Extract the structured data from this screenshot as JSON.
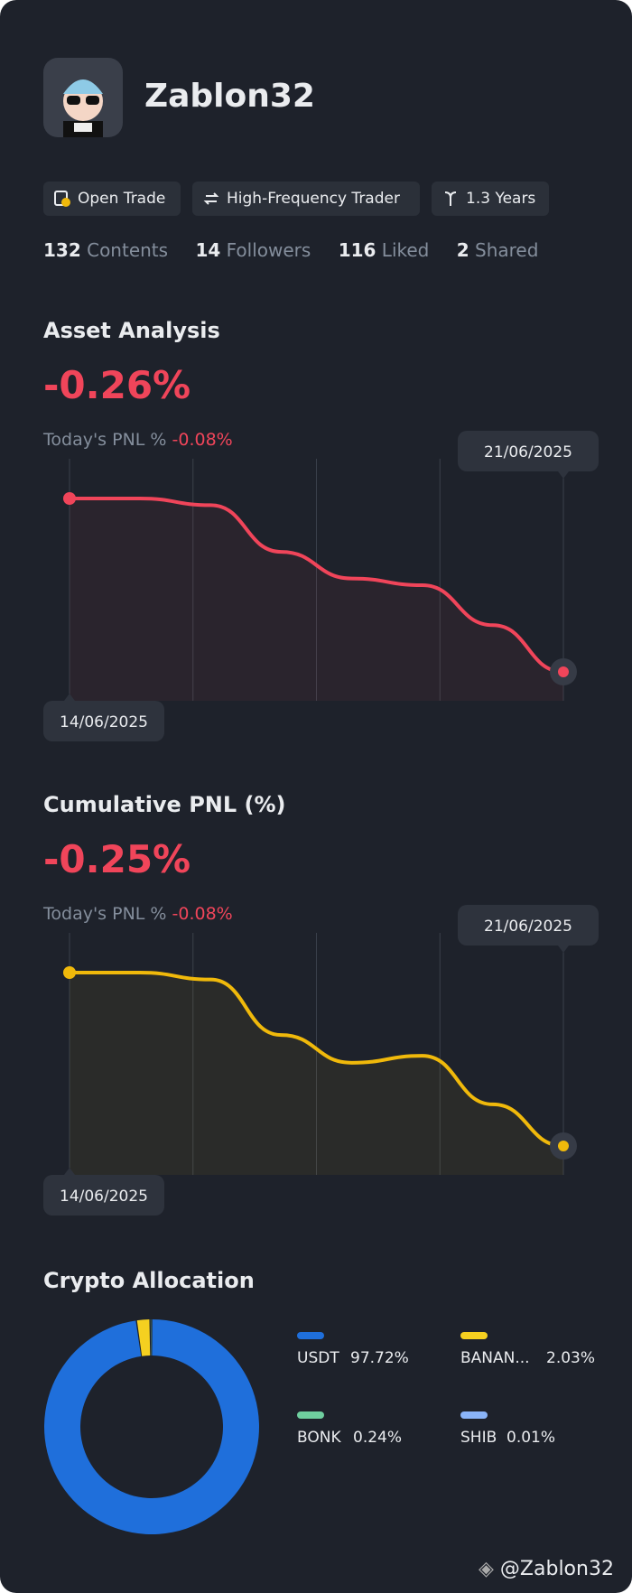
{
  "profile": {
    "name": "Zablon32",
    "tags": [
      "Open Trade",
      "High-Frequency Trader",
      "1.3 Years"
    ],
    "stats": [
      {
        "value": "132",
        "label": "Contents"
      },
      {
        "value": "14",
        "label": "Followers"
      },
      {
        "value": "116",
        "label": "Liked"
      },
      {
        "value": "2",
        "label": "Shared"
      }
    ]
  },
  "asset_analysis": {
    "title": "Asset Analysis",
    "headline": "-0.26%",
    "today_label": "Today's PNL %",
    "today_value": "-0.08%",
    "chart": {
      "type": "line",
      "color": "#f0455a",
      "categories": [
        "14/06/2025",
        null,
        null,
        null,
        null,
        null,
        null,
        "21/06/2025"
      ],
      "values": [
        0,
        0,
        -0.01,
        -0.08,
        -0.12,
        -0.13,
        -0.19,
        -0.26
      ]
    }
  },
  "cumulative_pnl": {
    "title": "Cumulative PNL (%)",
    "headline": "-0.25%",
    "today_label": "Today's PNL %",
    "today_value": "-0.08%",
    "chart": {
      "type": "line",
      "color": "#f0b90b",
      "categories": [
        "14/06/2025",
        null,
        null,
        null,
        null,
        null,
        null,
        "21/06/2025"
      ],
      "values": [
        0,
        0,
        -0.01,
        -0.09,
        -0.13,
        -0.12,
        -0.19,
        -0.25
      ]
    }
  },
  "crypto_allocation": {
    "title": "Crypto Allocation",
    "chart": {
      "type": "donut",
      "categories": [
        "USDT",
        "BANAN...",
        "BONK",
        "SHIB"
      ],
      "values": [
        97.72,
        2.03,
        0.24,
        0.01
      ],
      "value_labels": [
        "97.72%",
        "2.03%",
        "0.24%",
        "0.01%"
      ],
      "colors": [
        "#1f6fdb",
        "#f5d020",
        "#6fcf9f",
        "#8ab4f8"
      ]
    }
  },
  "footer": {
    "handle": "@Zablon32"
  }
}
